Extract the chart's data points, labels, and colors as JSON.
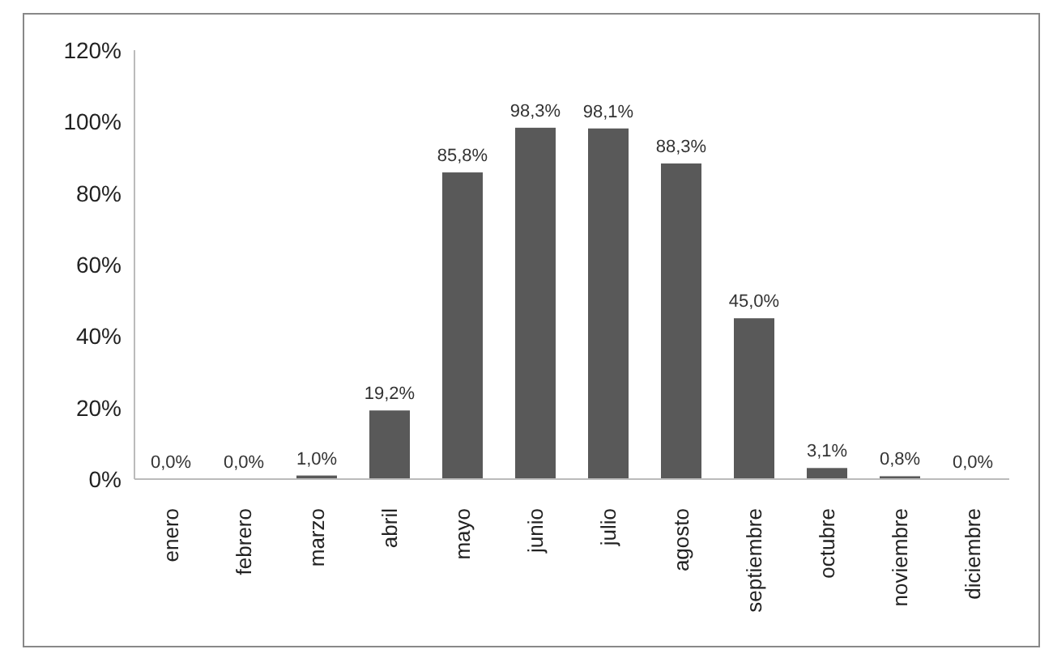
{
  "chart_data": {
    "type": "bar",
    "categories": [
      "enero",
      "febrero",
      "marzo",
      "abril",
      "mayo",
      "junio",
      "julio",
      "agosto",
      "septiembre",
      "octubre",
      "noviembre",
      "diciembre"
    ],
    "values": [
      0.0,
      0.0,
      1.0,
      19.2,
      85.8,
      98.3,
      98.1,
      88.3,
      45.0,
      3.1,
      0.8,
      0.0
    ],
    "value_labels": [
      "0,0%",
      "0,0%",
      "1,0%",
      "19,2%",
      "85,8%",
      "98,3%",
      "98,1%",
      "88,3%",
      "45,0%",
      "3,1%",
      "0,8%",
      "0,0%"
    ],
    "color": "#595959",
    "ylim": [
      0,
      120
    ],
    "yticks": [
      {
        "value": 0,
        "label": "0%"
      },
      {
        "value": 20,
        "label": "20%"
      },
      {
        "value": 40,
        "label": "40%"
      },
      {
        "value": 60,
        "label": "60%"
      },
      {
        "value": 80,
        "label": "80%"
      },
      {
        "value": 100,
        "label": "100%"
      },
      {
        "value": 120,
        "label": "120%"
      }
    ],
    "grid": false
  }
}
